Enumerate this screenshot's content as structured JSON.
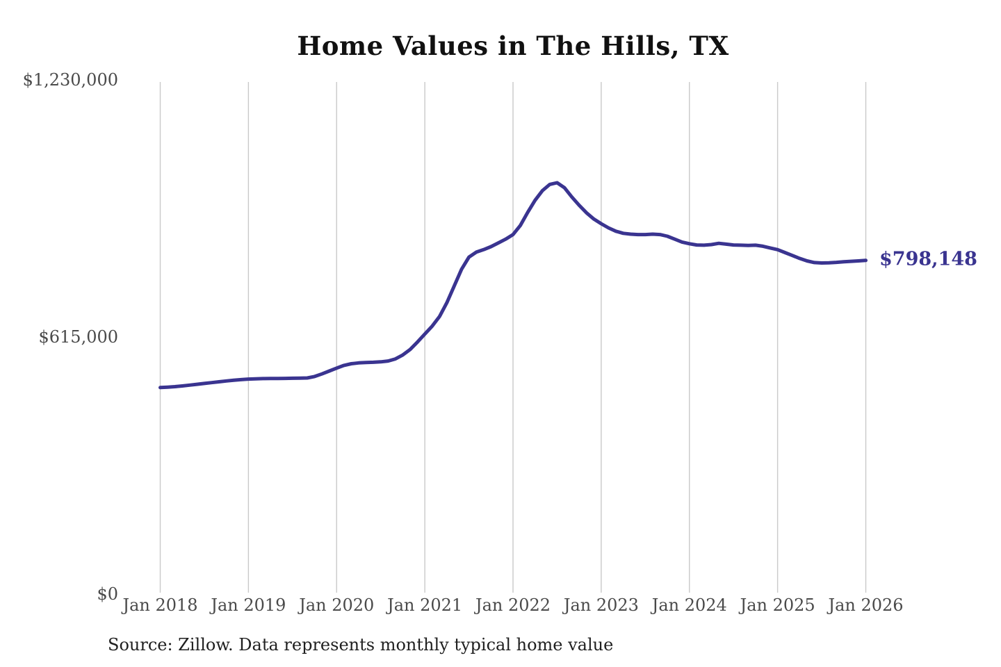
{
  "title": "Home Values in The Hills, TX",
  "end_label": "$798,148",
  "source_note": "Source: Zillow. Data represents monthly typical home value",
  "colors": {
    "line": "#3a3490",
    "end_label_text": "#3a3490",
    "gridline": "#c9c9c9",
    "axis_tick_text": "#4a4a4a",
    "title_text": "#111111",
    "source_text": "#1f1f1f",
    "background": "#ffffff"
  },
  "chart_data": {
    "type": "line",
    "title": "Home Values in The Hills, TX",
    "xlabel": "",
    "ylabel": "",
    "ylim": [
      0,
      1230000
    ],
    "grid": "vertical-only",
    "legend": "none",
    "x_tick_labels": [
      "Jan 2018",
      "Jan 2019",
      "Jan 2020",
      "Jan 2021",
      "Jan 2022",
      "Jan 2023",
      "Jan 2024",
      "Jan 2025",
      "Jan 2026"
    ],
    "y_ticks": [
      {
        "label": "$0",
        "value": 0
      },
      {
        "label": "$615,000",
        "value": 615000
      },
      {
        "label": "$1,230,000",
        "value": 1230000
      }
    ],
    "last_point": {
      "label": "$798,148",
      "value": 798148,
      "date": "2026-01"
    },
    "series": [
      {
        "name": "Monthly typical home value",
        "color": "#3a3490",
        "x_start": "2018-01",
        "x_step": "1 month",
        "values": [
          494000,
          495000,
          496200,
          497800,
          499800,
          501800,
          503800,
          505800,
          507800,
          509800,
          511500,
          513000,
          514200,
          515000,
          515400,
          515600,
          515800,
          516000,
          516200,
          516400,
          517000,
          520500,
          526500,
          533500,
          540500,
          547000,
          551000,
          553000,
          554000,
          554500,
          555500,
          557500,
          562500,
          572000,
          585000,
          603000,
          622000,
          641000,
          664000,
          697000,
          737000,
          777000,
          806000,
          818000,
          824000,
          831000,
          840000,
          849000,
          860000,
          882000,
          913000,
          942000,
          965000,
          980000,
          984000,
          972000,
          950000,
          930000,
          912000,
          897000,
          886000,
          876000,
          868000,
          863000,
          861000,
          860000,
          860000,
          861000,
          860000,
          856000,
          849000,
          842000,
          838000,
          835000,
          834500,
          836000,
          839000,
          837000,
          835000,
          834500,
          834000,
          834500,
          832000,
          828000,
          824000,
          817000,
          810000,
          803000,
          797000,
          793000,
          792000,
          792500,
          793500,
          795000,
          796000,
          797000,
          798148
        ]
      }
    ]
  }
}
